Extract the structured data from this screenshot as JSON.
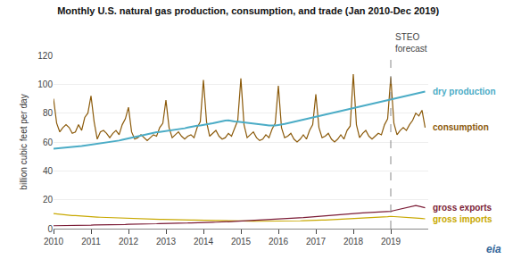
{
  "chart_data": {
    "type": "line",
    "title": "Monthly U.S. natural gas production, consumption, and trade (Jan 2010-Dec 2019)",
    "ylabel": "billion cubic feet per day",
    "x": [
      2010.0,
      2010.0833333333333,
      2010.1666666666667,
      2010.25,
      2010.3333333333333,
      2010.4166666666667,
      2010.5,
      2010.5833333333333,
      2010.6666666666667,
      2010.75,
      2010.8333333333333,
      2010.9166666666667,
      2011.0,
      2011.0833333333333,
      2011.1666666666667,
      2011.25,
      2011.3333333333333,
      2011.4166666666667,
      2011.5,
      2011.5833333333333,
      2011.6666666666667,
      2011.75,
      2011.8333333333333,
      2011.9166666666667,
      2012.0,
      2012.0833333333333,
      2012.1666666666667,
      2012.25,
      2012.3333333333333,
      2012.4166666666667,
      2012.5,
      2012.5833333333333,
      2012.6666666666667,
      2012.75,
      2012.8333333333333,
      2012.9166666666667,
      2013.0,
      2013.0833333333333,
      2013.1666666666667,
      2013.25,
      2013.3333333333333,
      2013.4166666666667,
      2013.5,
      2013.5833333333333,
      2013.6666666666667,
      2013.75,
      2013.8333333333333,
      2013.9166666666667,
      2014.0,
      2014.0833333333333,
      2014.1666666666667,
      2014.25,
      2014.3333333333333,
      2014.4166666666667,
      2014.5,
      2014.5833333333333,
      2014.6666666666667,
      2014.75,
      2014.8333333333333,
      2014.9166666666667,
      2015.0,
      2015.0833333333333,
      2015.1666666666667,
      2015.25,
      2015.3333333333333,
      2015.4166666666667,
      2015.5,
      2015.5833333333333,
      2015.6666666666667,
      2015.75,
      2015.8333333333333,
      2015.9166666666667,
      2016.0,
      2016.0833333333333,
      2016.1666666666667,
      2016.25,
      2016.3333333333333,
      2016.4166666666667,
      2016.5,
      2016.5833333333333,
      2016.6666666666667,
      2016.75,
      2016.8333333333333,
      2016.9166666666667,
      2017.0,
      2017.0833333333333,
      2017.1666666666667,
      2017.25,
      2017.3333333333333,
      2017.4166666666667,
      2017.5,
      2017.5833333333333,
      2017.6666666666667,
      2017.75,
      2017.8333333333333,
      2017.9166666666667,
      2018.0,
      2018.0833333333333,
      2018.1666666666667,
      2018.25,
      2018.3333333333333,
      2018.4166666666667,
      2018.5,
      2018.5833333333333,
      2018.6666666666667,
      2018.75,
      2018.8333333333333,
      2018.9166666666667,
      2019.0,
      2019.0833333333333,
      2019.1666666666667,
      2019.25,
      2019.3333333333333,
      2019.4166666666667,
      2019.5,
      2019.5833333333333,
      2019.6666666666667,
      2019.75,
      2019.8333333333333,
      2019.9166666666667
    ],
    "series": [
      {
        "name": "consumption",
        "color": "#8B5A0A",
        "values": [
          90.0,
          73.0,
          67.0,
          70.0,
          72.0,
          70.0,
          66.0,
          67.0,
          72.0,
          68.0,
          77.0,
          80.0,
          92.0,
          74.0,
          62.0,
          67.0,
          68.0,
          66.0,
          63.0,
          66.0,
          68.0,
          65.0,
          72.0,
          76.0,
          84.0,
          67.0,
          62.0,
          63.0,
          65.0,
          63.0,
          61.0,
          63.0,
          65.0,
          64.0,
          70.0,
          73.0,
          89.0,
          70.0,
          63.0,
          65.0,
          67.0,
          64.0,
          62.0,
          64.0,
          65.0,
          63.0,
          70.0,
          74.0,
          103.0,
          74.0,
          64.0,
          66.0,
          68.0,
          64.0,
          62.0,
          63.0,
          66.0,
          64.0,
          70.0,
          75.0,
          104.0,
          72.0,
          63.0,
          65.0,
          67.0,
          63.0,
          61.0,
          62.0,
          65.0,
          63.0,
          69.0,
          73.0,
          99.0,
          70.0,
          63.0,
          64.0,
          66.0,
          62.0,
          60.0,
          62.0,
          65.0,
          62.0,
          68.0,
          72.0,
          93.0,
          70.0,
          63.0,
          64.0,
          66.0,
          62.0,
          60.0,
          62.0,
          65.0,
          62.0,
          68.0,
          71.0,
          107.0,
          72.0,
          63.0,
          66.0,
          68.0,
          64.0,
          62.0,
          64.0,
          66.0,
          65.0,
          72.0,
          76.0,
          105.0,
          73.0,
          65.0,
          68.0,
          70.0,
          68.0,
          72.0,
          75.0,
          80.0,
          78.0,
          82.0,
          70.0
        ]
      },
      {
        "name": "dry production",
        "color": "#4BACC6",
        "values": [
          55.3,
          55.5,
          55.8,
          56.0,
          56.2,
          56.0,
          56.4,
          56.6,
          57.0,
          57.2,
          57.5,
          57.8,
          58.0,
          58.3,
          58.6,
          59.0,
          59.3,
          59.6,
          59.9,
          60.2,
          60.5,
          61.0,
          61.5,
          62.0,
          62.5,
          63.0,
          63.5,
          64.0,
          64.5,
          65.0,
          65.5,
          66.0,
          66.5,
          66.8,
          67.0,
          67.3,
          67.5,
          67.7,
          68.0,
          68.3,
          68.6,
          69.0,
          69.5,
          70.0,
          70.5,
          71.0,
          71.3,
          71.5,
          71.8,
          72.0,
          72.5,
          73.0,
          73.5,
          74.0,
          74.5,
          74.8,
          75.0,
          74.5,
          74.2,
          74.0,
          73.8,
          73.5,
          73.3,
          73.0,
          72.8,
          72.5,
          72.3,
          72.0,
          71.8,
          71.5,
          71.3,
          71.5,
          71.8,
          72.0,
          72.5,
          73.0,
          73.5,
          74.0,
          74.5,
          75.0,
          75.5,
          76.0,
          76.5,
          77.0,
          77.5,
          78.0,
          78.5,
          79.0,
          79.5,
          80.0,
          80.5,
          81.0,
          81.5,
          82.0,
          82.5,
          83.0,
          83.5,
          84.0,
          84.5,
          85.0,
          85.5,
          86.0,
          86.5,
          87.0,
          87.5,
          88.0,
          88.5,
          89.0,
          89.5,
          90.0,
          90.5,
          91.0,
          91.5,
          92.0,
          92.5,
          93.0,
          93.5,
          94.0,
          94.5,
          95.0
        ]
      },
      {
        "name": "gross imports",
        "color": "#C8A800",
        "values": [
          10.5,
          10.2,
          10.0,
          9.8,
          9.5,
          9.3,
          9.1,
          9.0,
          8.8,
          8.7,
          8.5,
          8.4,
          8.3,
          8.2,
          8.0,
          7.9,
          7.8,
          7.7,
          7.7,
          7.6,
          7.5,
          7.4,
          7.3,
          7.2,
          7.1,
          7.0,
          6.9,
          6.9,
          6.8,
          6.7,
          6.7,
          6.6,
          6.5,
          6.5,
          6.4,
          6.4,
          6.3,
          6.3,
          6.2,
          6.2,
          6.1,
          6.1,
          6.0,
          6.0,
          5.9,
          5.9,
          5.8,
          5.8,
          5.8,
          5.7,
          5.7,
          5.7,
          5.6,
          5.6,
          5.6,
          5.5,
          5.5,
          5.4,
          5.4,
          5.3,
          5.3,
          5.3,
          5.2,
          5.2,
          5.2,
          5.1,
          5.1,
          5.1,
          5.0,
          5.0,
          5.0,
          5.0,
          5.1,
          5.1,
          5.2,
          5.2,
          5.3,
          5.3,
          5.4,
          5.4,
          5.5,
          5.5,
          5.6,
          5.6,
          5.7,
          5.8,
          5.9,
          6.0,
          6.1,
          6.2,
          6.3,
          6.4,
          6.5,
          6.6,
          6.6,
          6.7,
          7.0,
          7.2,
          7.4,
          7.5,
          7.6,
          7.7,
          7.8,
          7.9,
          8.0,
          8.1,
          8.2,
          8.3,
          8.5,
          8.4,
          8.2,
          8.1,
          7.9,
          7.8,
          7.6,
          7.5,
          7.3,
          7.2,
          7.0,
          6.8
        ]
      },
      {
        "name": "gross exports",
        "color": "#7B1C36",
        "values": [
          2.0,
          2.0,
          2.0,
          2.1,
          2.1,
          2.1,
          2.2,
          2.2,
          2.2,
          2.3,
          2.3,
          2.4,
          2.4,
          2.5,
          2.5,
          2.5,
          2.6,
          2.6,
          2.7,
          2.7,
          2.8,
          2.8,
          2.9,
          2.9,
          3.0,
          3.0,
          3.1,
          3.1,
          3.2,
          3.2,
          3.3,
          3.3,
          3.4,
          3.4,
          3.5,
          3.5,
          3.6,
          3.6,
          3.7,
          3.7,
          3.8,
          3.8,
          3.9,
          3.9,
          4.0,
          4.0,
          4.1,
          4.1,
          4.2,
          4.2,
          4.3,
          4.4,
          4.5,
          4.5,
          4.6,
          4.7,
          4.8,
          4.9,
          5.0,
          5.1,
          5.2,
          5.3,
          5.4,
          5.5,
          5.6,
          5.7,
          5.8,
          5.9,
          6.0,
          6.1,
          6.2,
          6.3,
          6.4,
          6.5,
          6.6,
          6.7,
          6.8,
          7.0,
          7.2,
          7.4,
          7.6,
          7.8,
          8.0,
          8.2,
          8.4,
          8.6,
          8.8,
          9.0,
          9.2,
          9.4,
          9.6,
          9.8,
          10.0,
          10.2,
          10.4,
          10.5,
          10.6,
          10.7,
          10.8,
          10.9,
          11.0,
          11.1,
          11.2,
          11.3,
          11.4,
          11.5,
          11.6,
          11.7,
          12.0,
          12.5,
          13.0,
          13.5,
          14.0,
          14.5,
          15.0,
          15.5,
          16.0,
          15.5,
          15.0,
          14.5
        ]
      }
    ],
    "xlim": [
      2010,
      2020
    ],
    "xticks": [
      2010,
      2011,
      2012,
      2013,
      2014,
      2015,
      2016,
      2017,
      2018,
      2019
    ],
    "ylim": [
      0,
      120
    ],
    "yticks": [
      0,
      20,
      40,
      60,
      80,
      100,
      120
    ],
    "grid": true,
    "annotations": [
      {
        "text": "STEO\nforecast",
        "x": 2019.0,
        "line_style": "dashed"
      },
      {
        "text": "eia"
      }
    ]
  }
}
